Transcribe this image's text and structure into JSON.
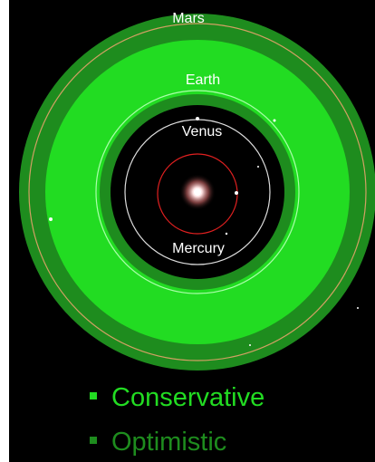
{
  "orbits": [
    {
      "label": "Mars"
    },
    {
      "label": "Earth"
    },
    {
      "label": "Venus"
    },
    {
      "label": "Mercury"
    }
  ],
  "legend": [
    {
      "label": "Conservative"
    },
    {
      "label": "Optimistic"
    }
  ]
}
